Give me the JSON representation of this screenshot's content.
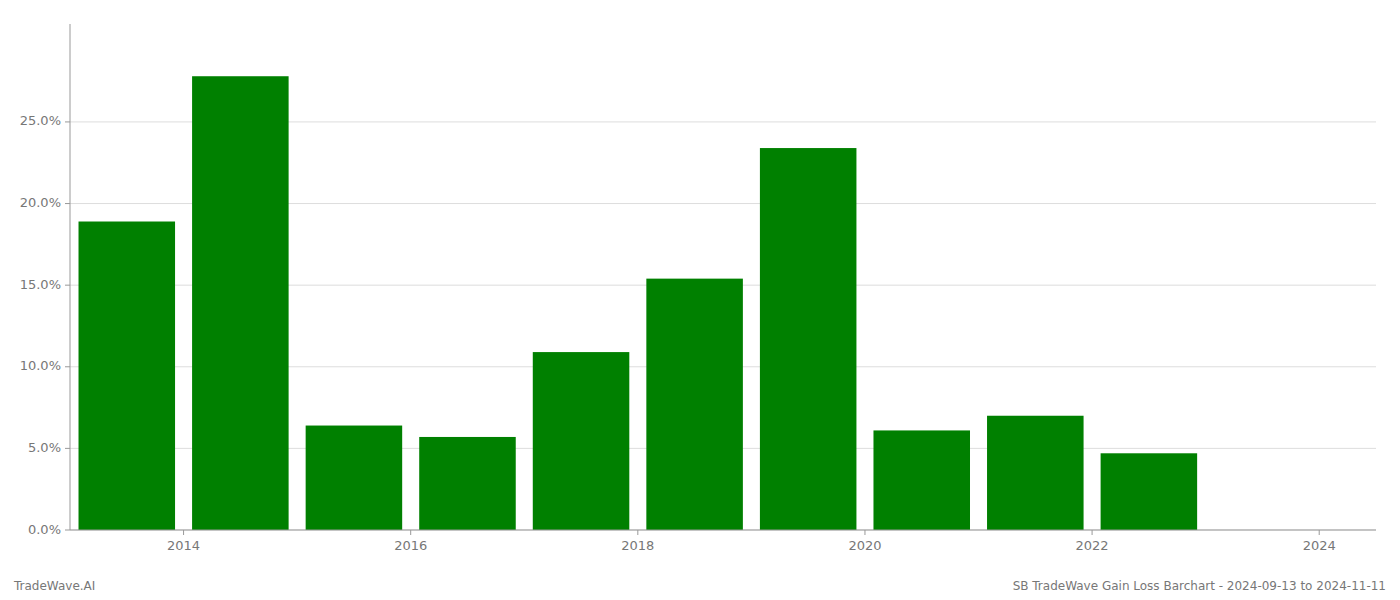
{
  "chart_data": {
    "type": "bar",
    "x": [
      2013.5,
      2014.5,
      2015.5,
      2016.5,
      2017.5,
      2018.5,
      2019.5,
      2020.5,
      2021.5,
      2022.5,
      2023.5
    ],
    "values": [
      0.189,
      0.278,
      0.064,
      0.057,
      0.109,
      0.154,
      0.234,
      0.061,
      0.07,
      0.047,
      0.0
    ],
    "color": "#008000",
    "xlim": [
      2013.0,
      2024.5
    ],
    "xticks": [
      2014,
      2016,
      2018,
      2020,
      2022,
      2024
    ],
    "ylim": [
      0,
      0.31
    ],
    "yticks": [
      {
        "value": 0.0,
        "label": "0.0%"
      },
      {
        "value": 0.05,
        "label": "5.0%"
      },
      {
        "value": 0.1,
        "label": "10.0%"
      },
      {
        "value": 0.15,
        "label": "15.0%"
      },
      {
        "value": 0.2,
        "label": "20.0%"
      },
      {
        "value": 0.25,
        "label": "25.0%"
      }
    ],
    "grid": true,
    "annotations": [
      "TradeWave.AI",
      "SB TradeWave Gain Loss Barchart - 2024-09-13 to 2024-11-11"
    ]
  }
}
